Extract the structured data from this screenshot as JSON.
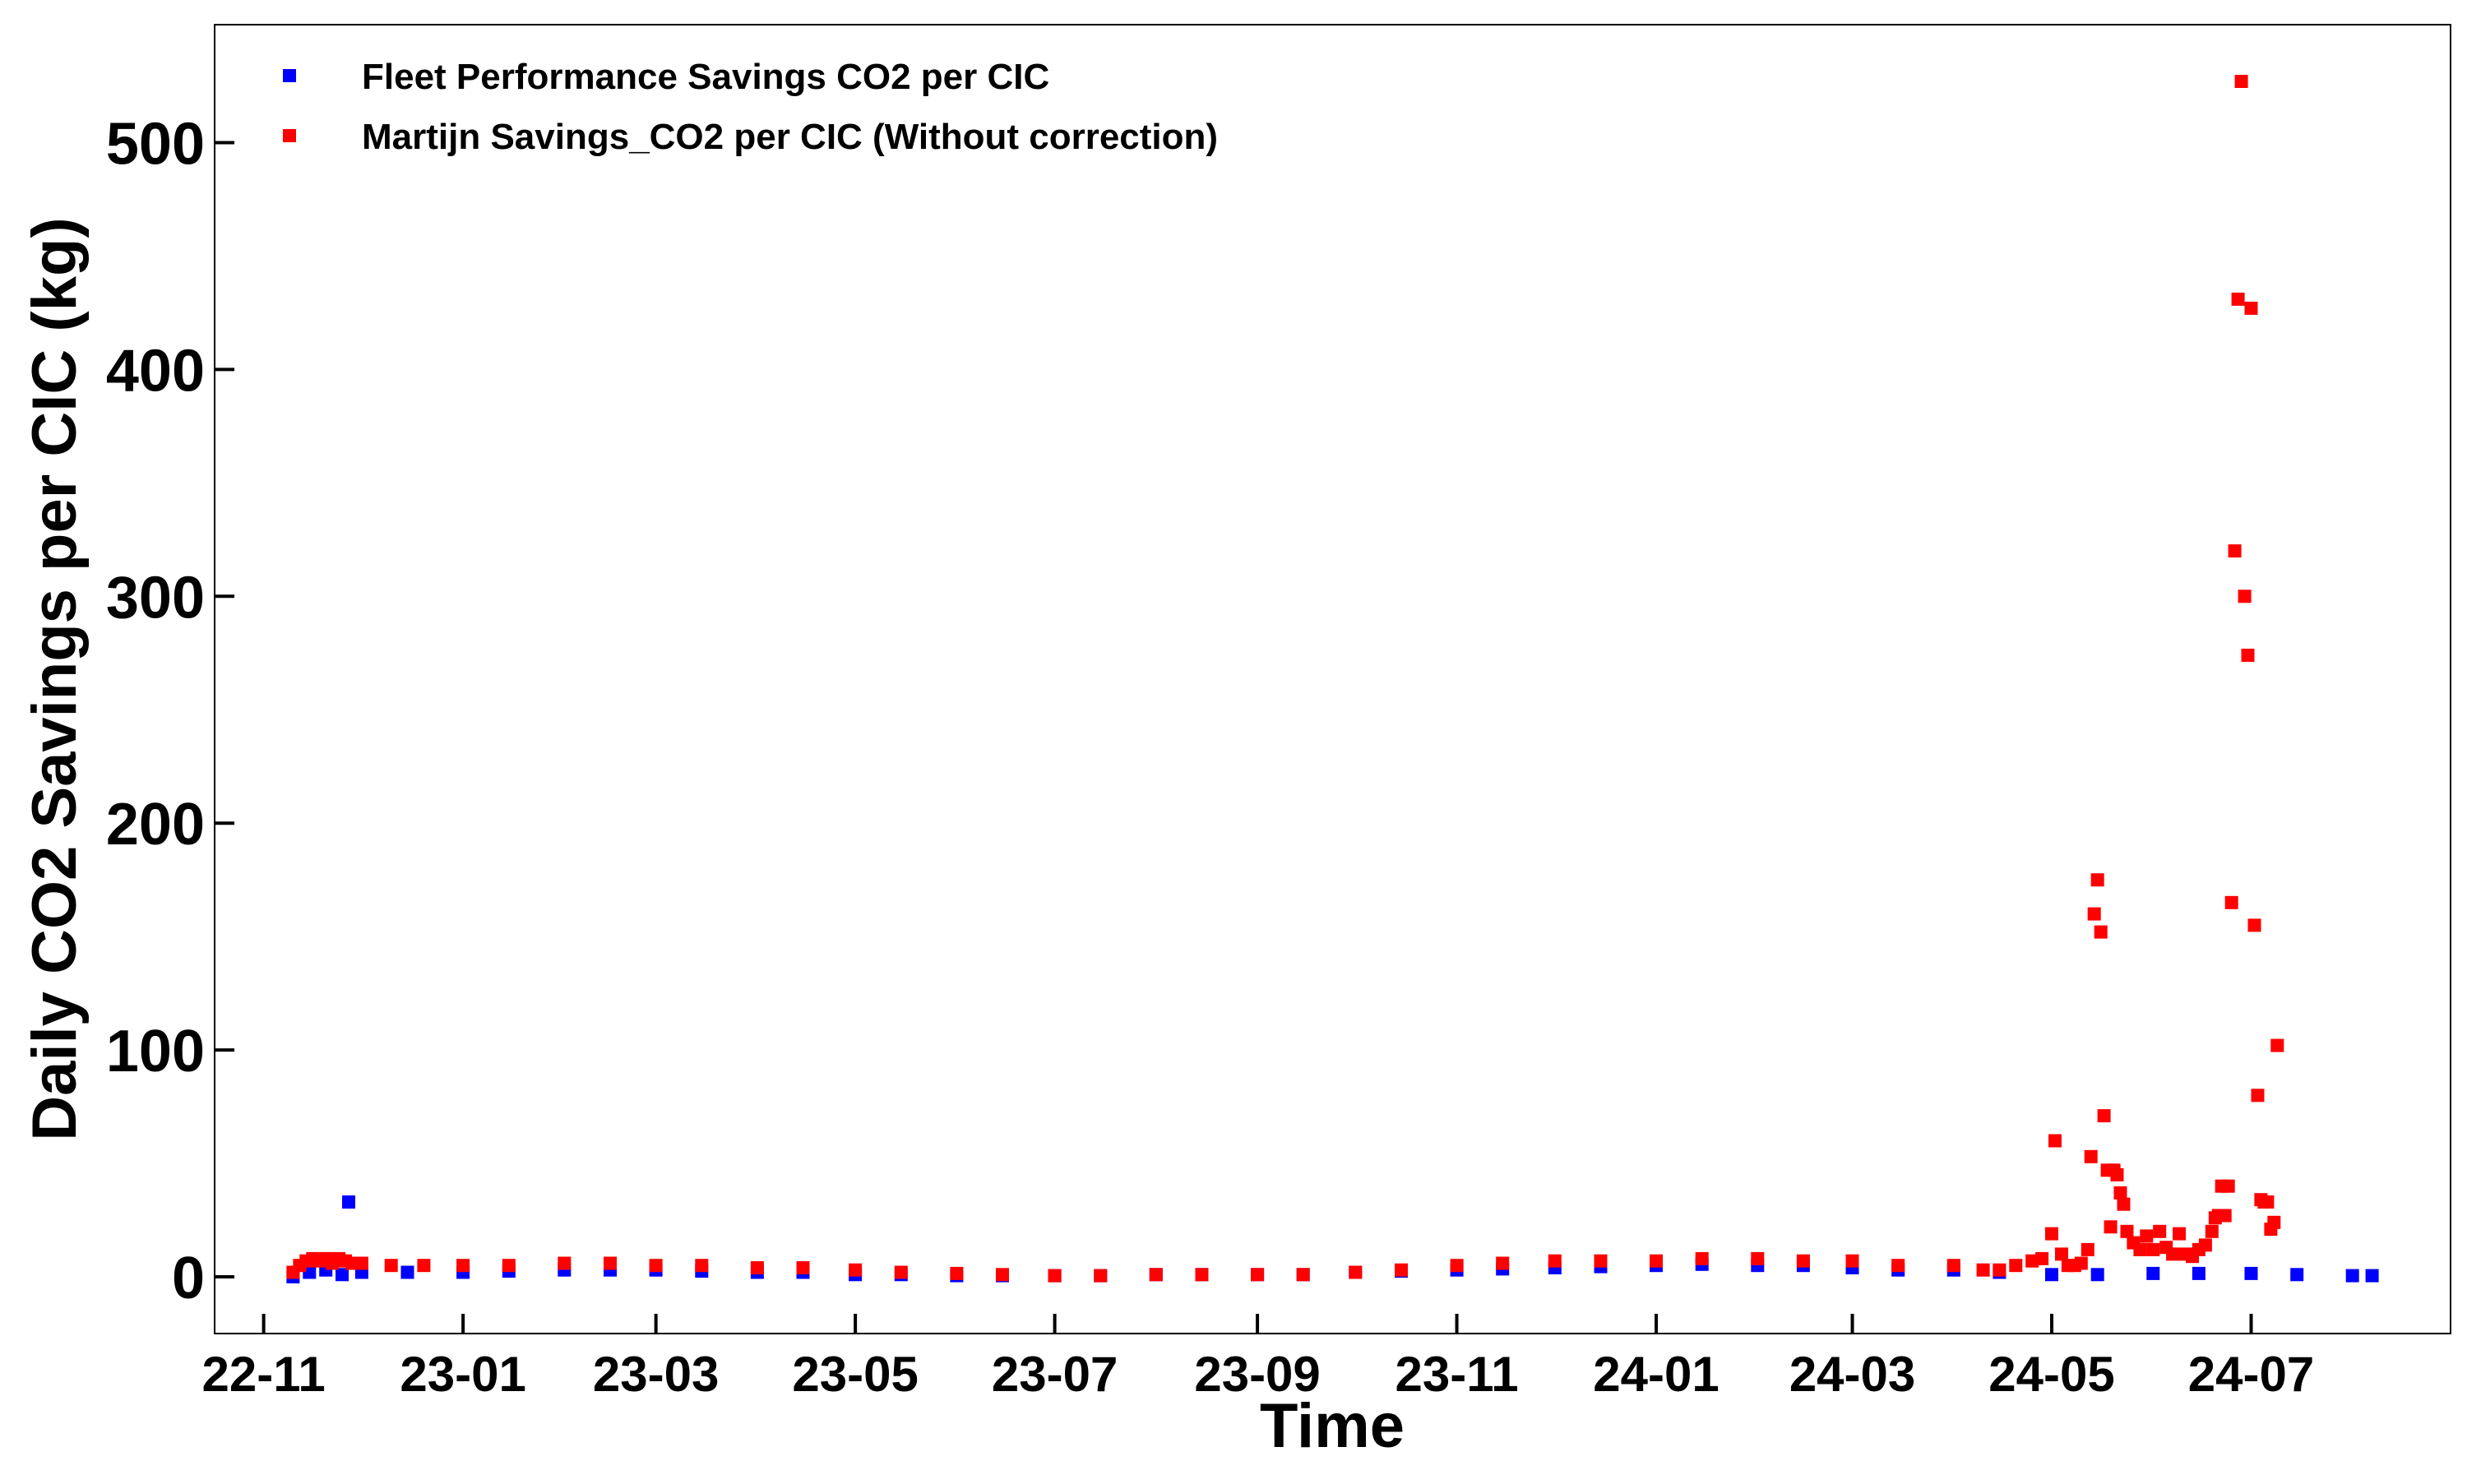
{
  "chart_data": {
    "type": "scatter",
    "title": "",
    "xlabel": "Time",
    "ylabel": "Daily CO2 Savings per CIC (kg)",
    "x_tick_labels": [
      "22-11",
      "23-01",
      "23-03",
      "23-05",
      "23-07",
      "23-09",
      "23-11",
      "24-01",
      "24-03",
      "24-05",
      "24-07"
    ],
    "x_ticks": [
      "2022-11-01",
      "2023-01-01",
      "2023-03-01",
      "2023-05-01",
      "2023-07-01",
      "2023-09-01",
      "2023-11-01",
      "2024-01-01",
      "2024-03-01",
      "2024-05-01",
      "2024-07-01"
    ],
    "xlim": [
      "2022-10-17",
      "2024-08-31"
    ],
    "y_ticks": [
      0,
      100,
      200,
      300,
      400,
      500
    ],
    "ylim": [
      -25,
      552
    ],
    "grid": false,
    "legend_position": "top-left",
    "series": [
      {
        "name": "Fleet Performance Savings CO2 per CIC",
        "color": "#0000ff",
        "marker": "square",
        "points": [
          [
            "2022-11-10",
            0
          ],
          [
            "2022-11-15",
            2
          ],
          [
            "2022-11-20",
            3
          ],
          [
            "2022-11-25",
            1
          ],
          [
            "2022-11-27",
            33
          ],
          [
            "2022-12-01",
            2
          ],
          [
            "2022-12-15",
            2
          ],
          [
            "2023-01-01",
            2
          ],
          [
            "2023-01-15",
            2.5
          ],
          [
            "2023-02-01",
            3
          ],
          [
            "2023-02-15",
            3
          ],
          [
            "2023-03-01",
            3
          ],
          [
            "2023-03-15",
            2.5
          ],
          [
            "2023-04-01",
            2
          ],
          [
            "2023-04-15",
            2
          ],
          [
            "2023-05-01",
            1
          ],
          [
            "2023-05-15",
            1
          ],
          [
            "2023-06-01",
            0.5
          ],
          [
            "2023-06-15",
            0.5
          ],
          [
            "2023-07-01",
            0.5
          ],
          [
            "2023-07-15",
            0.5
          ],
          [
            "2023-08-01",
            1
          ],
          [
            "2023-08-15",
            1
          ],
          [
            "2023-09-01",
            1
          ],
          [
            "2023-09-15",
            1
          ],
          [
            "2023-10-01",
            2
          ],
          [
            "2023-10-15",
            2.5
          ],
          [
            "2023-11-01",
            3
          ],
          [
            "2023-11-15",
            3.5
          ],
          [
            "2023-12-01",
            4
          ],
          [
            "2023-12-15",
            4.5
          ],
          [
            "2024-01-01",
            5
          ],
          [
            "2024-01-15",
            5.5
          ],
          [
            "2024-02-01",
            5
          ],
          [
            "2024-02-15",
            5
          ],
          [
            "2024-03-01",
            4
          ],
          [
            "2024-03-15",
            3
          ],
          [
            "2024-04-01",
            3
          ],
          [
            "2024-04-15",
            2
          ],
          [
            "2024-05-01",
            1
          ],
          [
            "2024-05-15",
            1
          ],
          [
            "2024-06-01",
            1.5
          ],
          [
            "2024-06-15",
            1.5
          ],
          [
            "2024-07-01",
            1.5
          ],
          [
            "2024-07-15",
            1
          ],
          [
            "2024-08-01",
            0.5
          ],
          [
            "2024-08-07",
            0.5
          ]
        ]
      },
      {
        "name": "Martijn Savings_CO2 per CIC (Without correction)",
        "color": "#ff0000",
        "marker": "square",
        "points": [
          [
            "2022-11-10",
            2
          ],
          [
            "2022-11-12",
            5
          ],
          [
            "2022-11-14",
            7
          ],
          [
            "2022-11-16",
            8
          ],
          [
            "2022-11-18",
            7
          ],
          [
            "2022-11-20",
            8
          ],
          [
            "2022-11-22",
            6
          ],
          [
            "2022-11-24",
            8
          ],
          [
            "2022-11-26",
            7
          ],
          [
            "2022-11-28",
            6
          ],
          [
            "2022-12-01",
            6
          ],
          [
            "2022-12-10",
            5
          ],
          [
            "2022-12-20",
            5
          ],
          [
            "2023-01-01",
            5
          ],
          [
            "2023-01-15",
            5
          ],
          [
            "2023-02-01",
            6
          ],
          [
            "2023-02-15",
            6
          ],
          [
            "2023-03-01",
            5
          ],
          [
            "2023-03-15",
            5
          ],
          [
            "2023-04-01",
            4
          ],
          [
            "2023-04-15",
            4
          ],
          [
            "2023-05-01",
            3
          ],
          [
            "2023-05-15",
            2
          ],
          [
            "2023-06-01",
            1.5
          ],
          [
            "2023-06-15",
            1
          ],
          [
            "2023-07-01",
            0.5
          ],
          [
            "2023-07-15",
            0.5
          ],
          [
            "2023-08-01",
            1
          ],
          [
            "2023-08-15",
            1
          ],
          [
            "2023-09-01",
            1
          ],
          [
            "2023-09-15",
            1
          ],
          [
            "2023-10-01",
            2
          ],
          [
            "2023-10-15",
            3
          ],
          [
            "2023-11-01",
            5
          ],
          [
            "2023-11-15",
            6
          ],
          [
            "2023-12-01",
            7
          ],
          [
            "2023-12-15",
            7
          ],
          [
            "2024-01-01",
            7
          ],
          [
            "2024-01-15",
            8
          ],
          [
            "2024-02-01",
            8
          ],
          [
            "2024-02-15",
            7
          ],
          [
            "2024-03-01",
            7
          ],
          [
            "2024-03-15",
            5
          ],
          [
            "2024-04-01",
            5
          ],
          [
            "2024-04-10",
            3
          ],
          [
            "2024-04-15",
            3
          ],
          [
            "2024-04-20",
            5
          ],
          [
            "2024-04-25",
            7
          ],
          [
            "2024-04-28",
            8
          ],
          [
            "2024-05-01",
            19
          ],
          [
            "2024-05-02",
            60
          ],
          [
            "2024-05-04",
            10
          ],
          [
            "2024-05-06",
            5
          ],
          [
            "2024-05-08",
            5
          ],
          [
            "2024-05-10",
            6
          ],
          [
            "2024-05-12",
            12
          ],
          [
            "2024-05-13",
            53
          ],
          [
            "2024-05-14",
            160
          ],
          [
            "2024-05-15",
            175
          ],
          [
            "2024-05-16",
            152
          ],
          [
            "2024-05-17",
            71
          ],
          [
            "2024-05-18",
            47
          ],
          [
            "2024-05-19",
            22
          ],
          [
            "2024-05-20",
            47
          ],
          [
            "2024-05-21",
            45
          ],
          [
            "2024-05-22",
            37
          ],
          [
            "2024-05-23",
            32
          ],
          [
            "2024-05-24",
            20
          ],
          [
            "2024-05-26",
            15
          ],
          [
            "2024-05-28",
            12
          ],
          [
            "2024-05-30",
            18
          ],
          [
            "2024-06-01",
            12
          ],
          [
            "2024-06-03",
            20
          ],
          [
            "2024-06-05",
            13
          ],
          [
            "2024-06-07",
            10
          ],
          [
            "2024-06-09",
            19
          ],
          [
            "2024-06-11",
            10
          ],
          [
            "2024-06-13",
            9
          ],
          [
            "2024-06-15",
            12
          ],
          [
            "2024-06-17",
            14
          ],
          [
            "2024-06-19",
            20
          ],
          [
            "2024-06-20",
            26
          ],
          [
            "2024-06-21",
            27
          ],
          [
            "2024-06-22",
            40
          ],
          [
            "2024-06-23",
            27
          ],
          [
            "2024-06-24",
            40
          ],
          [
            "2024-06-25",
            165
          ],
          [
            "2024-06-26",
            320
          ],
          [
            "2024-06-27",
            431
          ],
          [
            "2024-06-28",
            527
          ],
          [
            "2024-06-29",
            300
          ],
          [
            "2024-06-30",
            274
          ],
          [
            "2024-07-01",
            427
          ],
          [
            "2024-07-02",
            155
          ],
          [
            "2024-07-03",
            80
          ],
          [
            "2024-07-04",
            34
          ],
          [
            "2024-07-05",
            33
          ],
          [
            "2024-07-06",
            33
          ],
          [
            "2024-07-07",
            21
          ],
          [
            "2024-07-08",
            24
          ],
          [
            "2024-07-09",
            102
          ]
        ]
      }
    ]
  }
}
